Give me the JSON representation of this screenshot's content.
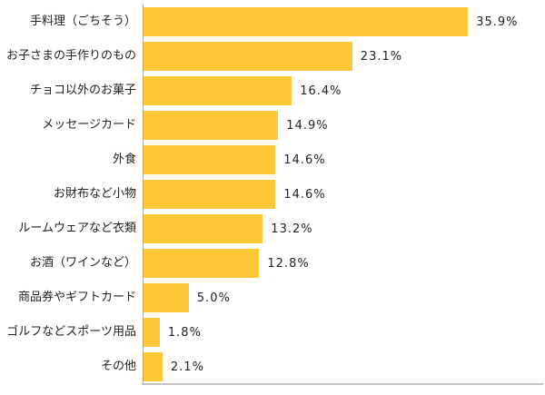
{
  "chart_data": {
    "type": "bar",
    "orientation": "horizontal",
    "title": "",
    "xlabel": "",
    "ylabel": "",
    "xlim": [
      0,
      40
    ],
    "grid": false,
    "legend": false,
    "categories": [
      "手料理（ごちそう）",
      "お子さまの手作りのもの",
      "チョコ以外のお菓子",
      "メッセージカード",
      "外食",
      "お財布など小物",
      "ルームウェアなど衣類",
      "お酒（ワインなど）",
      "商品券やギフトカード",
      "ゴルフなどスポーツ用品",
      "その他"
    ],
    "values": [
      35.9,
      23.1,
      16.4,
      14.9,
      14.6,
      14.6,
      13.2,
      12.8,
      5.0,
      1.8,
      2.1
    ],
    "value_labels": [
      "35.9%",
      "23.1%",
      "16.4%",
      "14.9%",
      "14.6%",
      "14.6%",
      "13.2%",
      "12.8%",
      "5.0%",
      "1.8%",
      "2.1%"
    ],
    "bar_color": "#FDC735",
    "y_axis_color": "#A6A6A6",
    "x_axis_color": "#C4C4C4",
    "text_color": "#222222"
  }
}
